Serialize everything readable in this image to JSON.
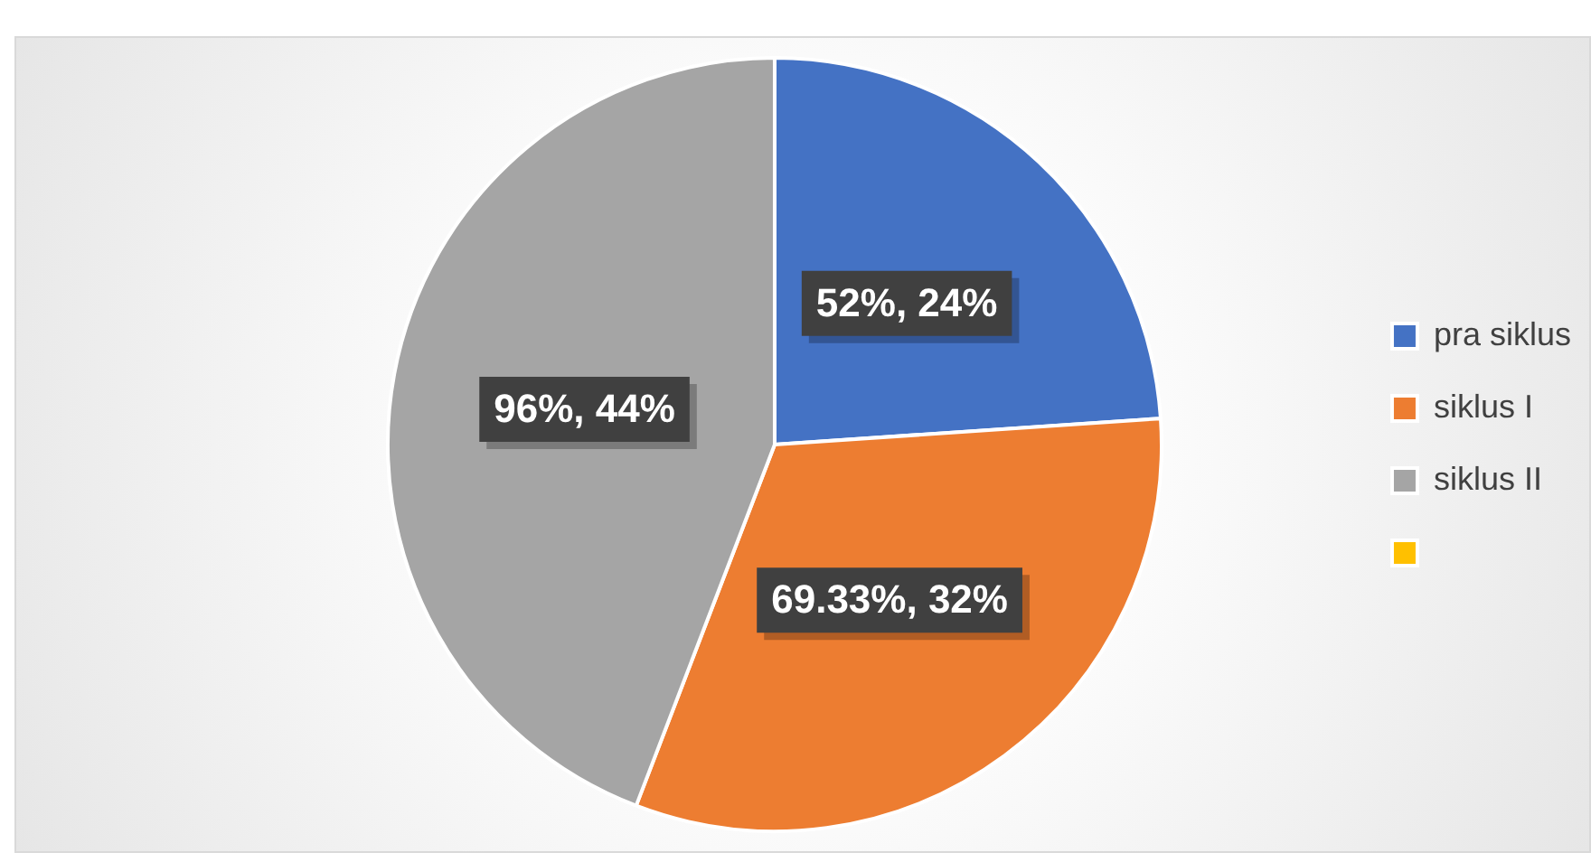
{
  "chart_data": {
    "type": "pie",
    "categories": [
      "pra siklus",
      "siklus I",
      "siklus II",
      null
    ],
    "values": [
      52,
      69.33,
      96,
      0
    ],
    "colors": [
      "#4472c4",
      "#ed7d31",
      "#a5a5a5",
      "#ffc000"
    ],
    "value_labels": [
      "52%, 24%",
      "69.33%, 32%",
      "96%, 44%",
      null
    ],
    "legend": "right"
  }
}
